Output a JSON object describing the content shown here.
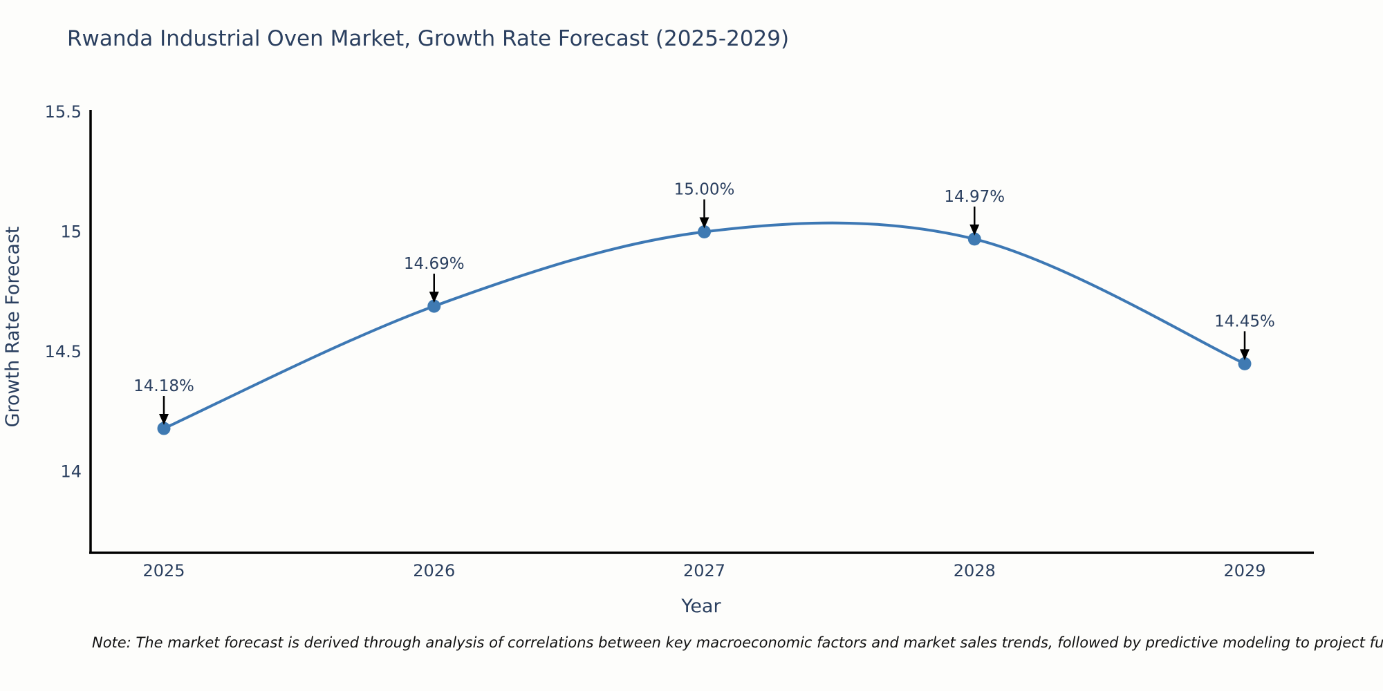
{
  "note": "Note: The market forecast is derived through analysis of correlations between key macroeconomic factors and market sales trends, followed by predictive modeling to project future sal",
  "chart_data": {
    "type": "line",
    "title": "Rwanda Industrial Oven Market, Growth Rate Forecast (2025-2029)",
    "xlabel": "Year",
    "ylabel": "Growth Rate Forecast",
    "categories": [
      "2025",
      "2026",
      "2027",
      "2028",
      "2029"
    ],
    "series": [
      {
        "name": "Growth Rate Forecast",
        "values": [
          14.18,
          14.69,
          15.0,
          14.97,
          14.45
        ]
      }
    ],
    "point_labels": [
      "14.18%",
      "14.69%",
      "15.00%",
      "14.97%",
      "14.45%"
    ],
    "line_shape": "spline",
    "grid": false,
    "legend_position": "none",
    "yticks": [
      15.5,
      15,
      14.5,
      14
    ],
    "ytick_labels": [
      "15.5",
      "15",
      "14.5",
      "14"
    ],
    "ylim": [
      13.66,
      15.51
    ],
    "colors": {
      "line": "#3d78b4",
      "marker": "#3f7ab2",
      "arrow": "#000000",
      "axis": "#000000",
      "text": "#2a3f5f",
      "note": "#111111",
      "background": "#fdfdfb"
    }
  }
}
